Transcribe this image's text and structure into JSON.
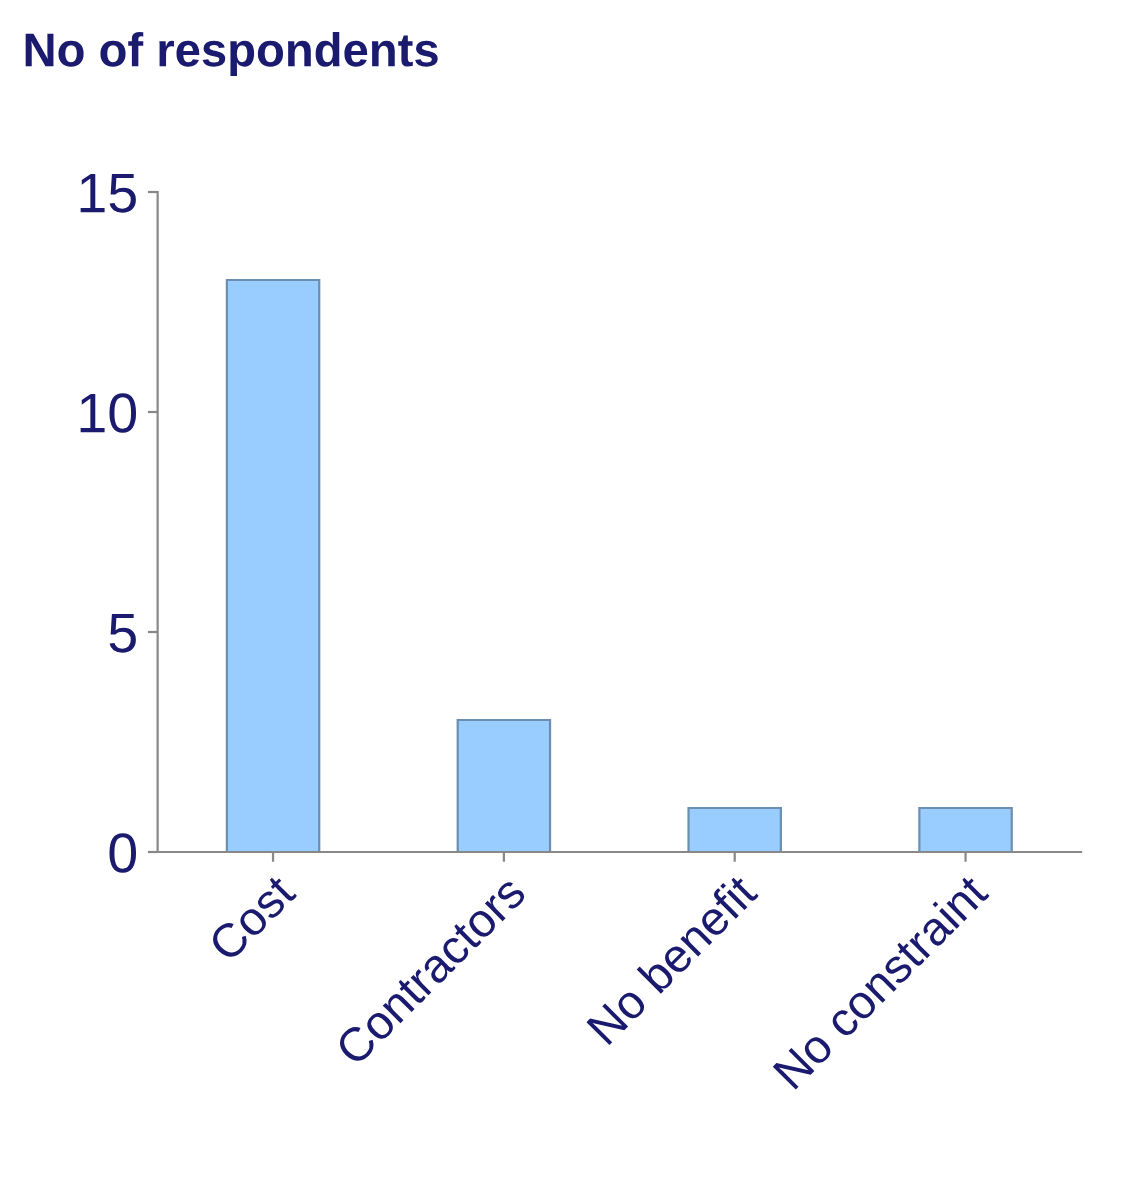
{
  "chart_data": {
    "type": "bar",
    "title": "No of respondents",
    "categories": [
      "Cost",
      "Contractors",
      "No benefit",
      "No constraint"
    ],
    "values": [
      13,
      3,
      1,
      1
    ],
    "color": "#99ccff",
    "ylim": [
      0,
      15
    ],
    "yticks": [
      0,
      5,
      10,
      15
    ],
    "grid": false
  }
}
